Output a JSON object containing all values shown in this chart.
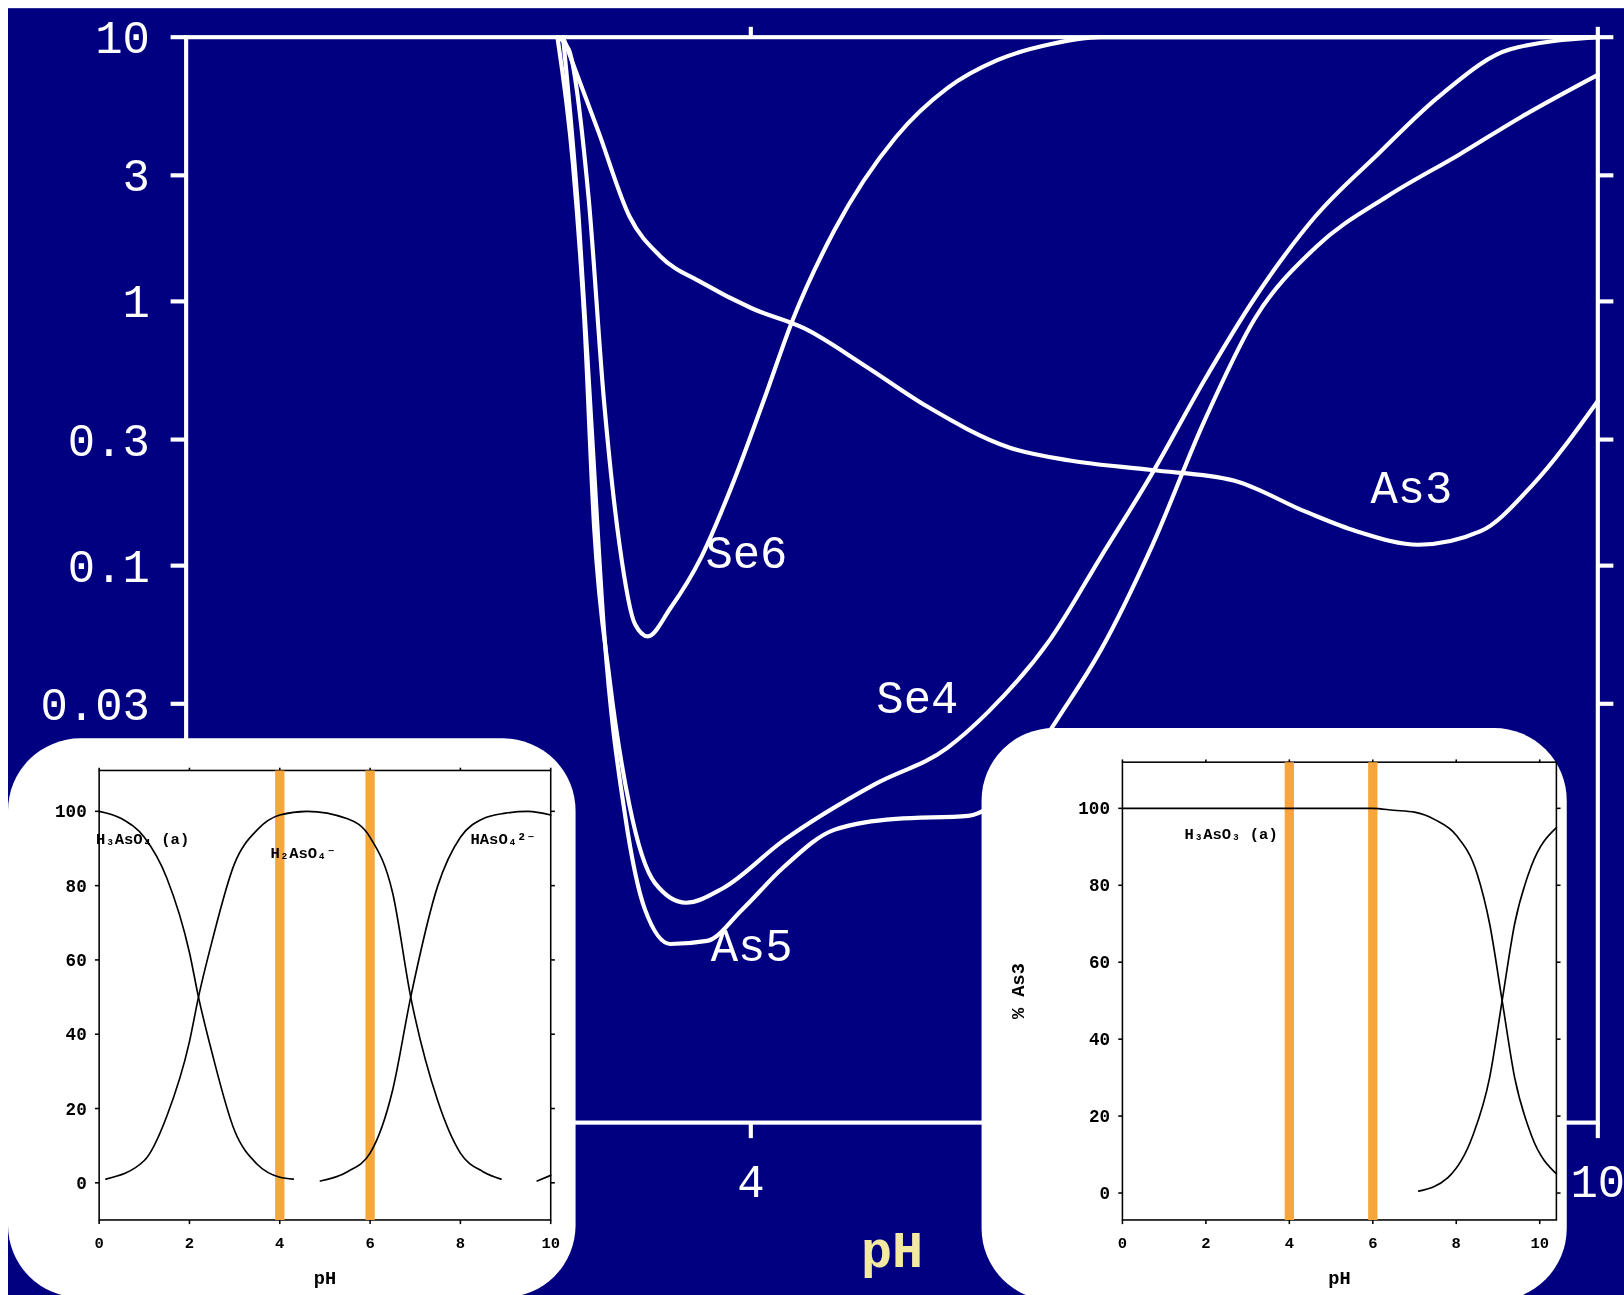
{
  "chart_data": [
    {
      "type": "line",
      "xlabel": "pH",
      "xlim": [
        0,
        10
      ],
      "xticks": [
        4,
        10
      ],
      "ylim": [
        0.00078,
        10
      ],
      "yticks": [
        0.03,
        0.1,
        0.3,
        1,
        3,
        10
      ],
      "log": "y",
      "grid": false,
      "legend": false,
      "marker": "none",
      "line_style": "solid",
      "series": [
        {
          "name": "Se6",
          "color": "#ffffff",
          "x": [
            2.63,
            2.71,
            2.85,
            2.96,
            3.07,
            3.18,
            3.27,
            3.43,
            3.65,
            3.87,
            4.09,
            4.3,
            4.59,
            5.03,
            5.39,
            5.75,
            6.12,
            6.48,
            10
          ],
          "values": [
            10,
            9,
            2.5,
            0.42,
            0.12,
            0.06,
            0.054,
            0.069,
            0.108,
            0.203,
            0.42,
            0.86,
            1.85,
            4.2,
            6.4,
            8.2,
            9.4,
            10,
            10
          ]
        },
        {
          "name": "As3",
          "color": "#ffffff",
          "x": [
            2.67,
            2.92,
            3.14,
            3.36,
            3.65,
            4.01,
            4.38,
            4.81,
            5.25,
            5.83,
            6.26,
            6.84,
            7.42,
            7.93,
            8.29,
            8.73,
            9.17,
            9.53,
            10
          ],
          "values": [
            10,
            4.4,
            2.1,
            1.48,
            1.18,
            0.94,
            0.79,
            0.57,
            0.4,
            0.28,
            0.25,
            0.23,
            0.21,
            0.16,
            0.135,
            0.12,
            0.135,
            0.2,
            0.42
          ]
        },
        {
          "name": "Se4",
          "color": "#ffffff",
          "x": [
            2.63,
            2.74,
            2.82,
            2.89,
            3.0,
            3.14,
            3.32,
            3.54,
            3.8,
            4.23,
            4.88,
            5.39,
            5.68,
            6.12,
            6.48,
            6.84,
            7.21,
            7.57,
            8.0,
            8.44,
            8.88,
            9.38,
            10
          ],
          "values": [
            10,
            3.3,
            0.86,
            0.14,
            0.037,
            0.0124,
            0.0063,
            0.0053,
            0.006,
            0.0091,
            0.0149,
            0.0204,
            0.0279,
            0.0525,
            0.108,
            0.222,
            0.5,
            1.03,
            2.1,
            3.6,
            6.0,
            9,
            10
          ]
        },
        {
          "name": "As5",
          "color": "#ffffff",
          "x": [
            2.67,
            2.78,
            2.87,
            2.96,
            3.11,
            3.25,
            3.43,
            3.69,
            3.94,
            4.23,
            4.59,
            5.03,
            5.54,
            6.26,
            6.48,
            6.84,
            7.21,
            7.57,
            8.0,
            8.51,
            9.02,
            9.46,
            10
          ],
          "values": [
            10,
            2.1,
            0.35,
            0.057,
            0.0113,
            0.005,
            0.0037,
            0.0038,
            0.005,
            0.0072,
            0.01,
            0.011,
            0.0113,
            0.031,
            0.048,
            0.118,
            0.35,
            0.86,
            1.6,
            2.5,
            3.6,
            5.0,
            7.2
          ]
        }
      ]
    },
    {
      "type": "line",
      "xlabel": "pH",
      "xlim": [
        0,
        10
      ],
      "xticks": [
        0,
        2,
        4,
        6,
        8,
        10
      ],
      "ylim": [
        -10,
        111
      ],
      "yticks": [
        0,
        20,
        40,
        60,
        80,
        100
      ],
      "grid": false,
      "legend": false,
      "marker": "none",
      "line_style": "solid",
      "series": [
        {
          "name": "H₃AsO₄ (a)",
          "color": "#000000",
          "x": [
            0,
            0.5,
            1,
            1.5,
            2,
            2.2,
            2.5,
            3,
            3.5,
            4,
            4.3
          ],
          "values": [
            100,
            98,
            93,
            82,
            62,
            50,
            35,
            14,
            5,
            1.5,
            1
          ]
        },
        {
          "name": "H₂AsO₄⁻",
          "color": "#000000",
          "x": [
            0.15,
            1,
            1.5,
            2,
            2.2,
            2.5,
            3,
            3.5,
            4,
            4.6,
            5.5,
            6,
            6.5,
            6.9,
            7.5,
            8,
            8.5,
            8.9
          ],
          "values": [
            1,
            6,
            18,
            38,
            50,
            65,
            86,
            95,
            99,
            100,
            98,
            93,
            78,
            50,
            22,
            8,
            3,
            1
          ]
        },
        {
          "name": "HAsO₄²⁻",
          "color": "#000000",
          "x": [
            4.9,
            5.5,
            6,
            6.5,
            6.9,
            7.5,
            8,
            8.5,
            9,
            9.5,
            10
          ],
          "values": [
            0.5,
            3,
            8,
            25,
            50,
            80,
            93,
            98,
            99.5,
            100,
            99
          ]
        },
        {
          "color": "#000000",
          "x": [
            9.7,
            10
          ],
          "values": [
            0.5,
            2
          ]
        }
      ],
      "ref_lines": [
        {
          "axis": "x",
          "value": 4,
          "color": "#f7a63c"
        },
        {
          "axis": "x",
          "value": 6,
          "color": "#f7a63c"
        }
      ]
    },
    {
      "type": "line",
      "xlabel": "pH",
      "ylabel": "% As3",
      "xlim": [
        0,
        10.4
      ],
      "xticks": [
        0,
        2,
        4,
        6,
        8,
        10
      ],
      "ylim": [
        -7,
        112
      ],
      "yticks": [
        0,
        20,
        40,
        60,
        80,
        100
      ],
      "grid": false,
      "legend": false,
      "marker": "none",
      "line_style": "solid",
      "series": [
        {
          "name": "H₃AsO₃ (a)",
          "color": "#000000",
          "x": [
            0,
            6,
            6.5,
            7,
            7.5,
            8,
            8.5,
            8.8,
            9.1,
            9.4,
            9.8,
            10.4
          ],
          "values": [
            100,
            100,
            99.5,
            99,
            97,
            93,
            83,
            70,
            50,
            30,
            15,
            5
          ]
        },
        {
          "color": "#000000",
          "x": [
            7.1,
            7.8,
            8.4,
            8.8,
            9.1,
            9.4,
            9.8,
            10.4
          ],
          "values": [
            0.5,
            4,
            15,
            30,
            50,
            70,
            85,
            95
          ]
        }
      ],
      "ref_lines": [
        {
          "axis": "x",
          "value": 4,
          "color": "#f7a63c"
        },
        {
          "axis": "x",
          "value": 6,
          "color": "#f7a63c"
        }
      ]
    }
  ]
}
